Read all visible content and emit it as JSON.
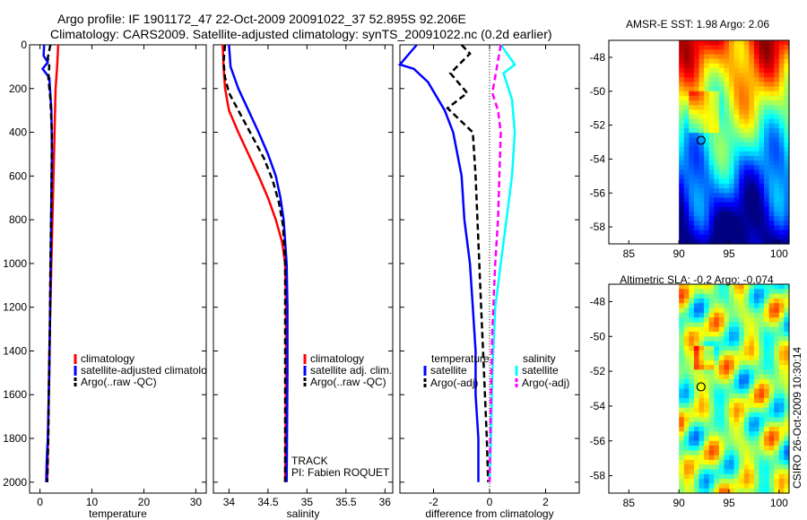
{
  "header": {
    "line1": "Argo profile: IF 1901172_47 22-Oct-2009 20091022_37 52.895S 92.206E",
    "line2": "Climatology: CARS2009. Satellite-adjusted climatology: synTS_20091022.nc (0.2d earlier)"
  },
  "side_label": "CSIRO 26-Oct-2009 10:30:14",
  "colors": {
    "red": "#ff0000",
    "blue": "#0000ff",
    "black": "#000000",
    "cyan": "#00ffff",
    "magenta": "#ff00ff"
  },
  "chart_data": [
    {
      "type": "line",
      "panel": "temperature",
      "xlabel": "temperature",
      "xlim": [
        -2,
        32
      ],
      "ylim": [
        2050,
        0
      ],
      "xticks": [
        0,
        10,
        20,
        30
      ],
      "yticks": [
        0,
        200,
        400,
        600,
        800,
        1000,
        1200,
        1400,
        1600,
        1800,
        2000
      ],
      "legend": [
        "climatology",
        "satellite-adjusted climatolo",
        "Argo(..raw -QC)"
      ],
      "series": [
        {
          "name": "climatology",
          "color": "red",
          "dash": false,
          "x": [
            3.5,
            3.3,
            3.0,
            2.8,
            2.6,
            2.4,
            2.2,
            2.0,
            1.8,
            1.6,
            1.4
          ],
          "y": [
            0,
            100,
            200,
            400,
            600,
            800,
            1000,
            1200,
            1400,
            1700,
            2000
          ]
        },
        {
          "name": "satellite-adjusted climatology",
          "color": "blue",
          "dash": false,
          "x": [
            0.8,
            0.7,
            1.5,
            0.5,
            1.8,
            2.2,
            2.3,
            2.2,
            2.1,
            2.0,
            1.9,
            1.8,
            1.6,
            1.5,
            1.3,
            1.2
          ],
          "y": [
            0,
            50,
            80,
            110,
            150,
            300,
            500,
            700,
            900,
            1100,
            1300,
            1500,
            1700,
            1800,
            1900,
            2000
          ]
        },
        {
          "name": "Argo(..raw -QC)",
          "color": "black",
          "dash": true,
          "x": [
            2.0,
            1.5,
            1.8,
            1.6,
            2.0,
            2.3,
            2.2,
            2.0,
            1.9,
            1.7,
            1.6,
            1.4
          ],
          "y": [
            0,
            60,
            100,
            150,
            250,
            400,
            700,
            1000,
            1300,
            1600,
            1800,
            2000
          ]
        }
      ]
    },
    {
      "type": "line",
      "panel": "salinity",
      "xlabel": "salinity",
      "xlim": [
        33.8,
        36.1
      ],
      "ylim": [
        2050,
        0
      ],
      "xticks": [
        34,
        34.5,
        35,
        35.5,
        36
      ],
      "xticklabels": [
        "34",
        "34.5",
        "35",
        "35.5",
        "36"
      ],
      "legend": [
        "climatology",
        "satellite adj. clim.",
        "Argo(..raw -QC)"
      ],
      "annotations": [
        "TRACK",
        "PI: Fabien ROQUET"
      ],
      "series": [
        {
          "name": "climatology",
          "color": "red",
          "dash": false,
          "x": [
            33.92,
            33.93,
            33.95,
            34.0,
            34.12,
            34.25,
            34.38,
            34.5,
            34.6,
            34.68,
            34.72,
            34.73,
            34.73,
            34.72
          ],
          "y": [
            0,
            100,
            200,
            300,
            400,
            500,
            600,
            700,
            800,
            900,
            1000,
            1200,
            1500,
            2000
          ]
        },
        {
          "name": "satellite adj. clim.",
          "color": "blue",
          "dash": false,
          "x": [
            34.0,
            34.02,
            34.12,
            34.25,
            34.38,
            34.5,
            34.6,
            34.66,
            34.7,
            34.72,
            34.74,
            34.75,
            34.75,
            34.74
          ],
          "y": [
            0,
            100,
            200,
            300,
            400,
            500,
            600,
            700,
            800,
            900,
            1000,
            1200,
            1500,
            2000
          ]
        },
        {
          "name": "Argo(..raw -QC)",
          "color": "black",
          "dash": true,
          "x": [
            33.95,
            33.93,
            33.95,
            34.0,
            34.15,
            34.3,
            34.45,
            34.56,
            34.64,
            34.69,
            34.71,
            34.72,
            34.72,
            34.72
          ],
          "y": [
            0,
            80,
            150,
            220,
            320,
            420,
            520,
            620,
            720,
            820,
            920,
            1000,
            1300,
            2000
          ]
        }
      ]
    },
    {
      "type": "line",
      "panel": "difference",
      "xlabel": "difference from climatology",
      "xlim": [
        -3.2,
        3.2
      ],
      "ylim": [
        2050,
        0
      ],
      "xticks": [
        -2,
        0,
        2
      ],
      "xticklabels": [
        "-2",
        "0",
        "2"
      ],
      "legend_headers": [
        "temperature",
        "salinity"
      ],
      "legend_left": [
        "satellite",
        "Argo(-adj)"
      ],
      "legend_right": [
        "satellite",
        "Argo(-adj)"
      ],
      "series": [
        {
          "name": "temperature satellite",
          "color": "blue",
          "dash": false,
          "x": [
            -2.6,
            -3.2,
            -2.7,
            -2.2,
            -1.6,
            -1.3,
            -1.0,
            -0.9,
            -0.7,
            -0.6,
            -0.5,
            -0.5,
            -0.4,
            -0.4
          ],
          "y": [
            0,
            90,
            110,
            170,
            300,
            400,
            600,
            800,
            1000,
            1200,
            1400,
            1600,
            1800,
            2000
          ]
        },
        {
          "name": "temperature Argo(-adj)",
          "color": "black",
          "dash": true,
          "x": [
            -1.0,
            -0.7,
            -1.4,
            -0.8,
            -1.5,
            -0.6,
            -0.5,
            -0.4,
            -0.3,
            -0.2,
            -0.1,
            -0.05
          ],
          "y": [
            0,
            40,
            130,
            220,
            290,
            400,
            600,
            900,
            1200,
            1500,
            1800,
            2000
          ]
        },
        {
          "name": "salinity satellite",
          "color": "cyan",
          "dash": false,
          "x": [
            0.4,
            0.9,
            0.5,
            0.8,
            0.9,
            0.8,
            0.6,
            0.4,
            0.2,
            0.1,
            0.05,
            0.0
          ],
          "y": [
            0,
            90,
            130,
            250,
            400,
            600,
            800,
            1000,
            1200,
            1500,
            1800,
            2000
          ]
        },
        {
          "name": "salinity Argo(-adj)",
          "color": "magenta",
          "dash": true,
          "x": [
            0.4,
            0.1,
            0.3,
            0.4,
            0.35,
            0.3,
            0.2,
            0.1,
            0.05,
            0.0
          ],
          "y": [
            0,
            220,
            300,
            400,
            600,
            800,
            1000,
            1300,
            1600,
            2000
          ]
        }
      ]
    },
    {
      "type": "heatmap",
      "title": "AMSR-E SST: 1.98 Argo: 2.06",
      "xlim": [
        83,
        101
      ],
      "ylim": [
        -59,
        -47
      ],
      "data_xlim": [
        90,
        101
      ],
      "xticks": [
        85,
        90,
        95,
        100
      ],
      "yticks": [
        -48,
        -50,
        -52,
        -54,
        -56,
        -58
      ],
      "marker": {
        "lon": 92.206,
        "lat": -52.895
      }
    },
    {
      "type": "heatmap",
      "title": "Altimetric SLA: -0.2 Argo: -0.074",
      "xlim": [
        83,
        101
      ],
      "ylim": [
        -59,
        -47
      ],
      "data_xlim": [
        90,
        101
      ],
      "xticks": [
        85,
        90,
        95,
        100
      ],
      "yticks": [
        -48,
        -50,
        -52,
        -54,
        -56,
        -58
      ],
      "marker": {
        "lon": 92.206,
        "lat": -52.895
      }
    }
  ]
}
